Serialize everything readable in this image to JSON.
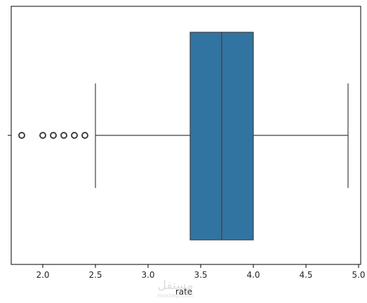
{
  "chart_data": {
    "type": "box",
    "orientation": "horizontal",
    "xlabel": "rate",
    "ylabel": "",
    "xlim": [
      1.7,
      5.02
    ],
    "x_ticks": [
      2.0,
      2.5,
      3.0,
      3.5,
      4.0,
      4.5,
      5.0
    ],
    "x_tick_labels": [
      "2.0",
      "2.5",
      "3.0",
      "3.5",
      "4.0",
      "4.5",
      "5.0"
    ],
    "grid": false,
    "box": {
      "whisker_low": 2.5,
      "q1": 3.4,
      "median": 3.7,
      "q3": 4.0,
      "whisker_high": 4.9,
      "outliers": [
        1.8,
        2.0,
        2.1,
        2.2,
        2.3,
        2.4
      ]
    },
    "colors": {
      "box_fill": "#3274a1",
      "line": "#3f3f3f",
      "axis": "#000000"
    }
  },
  "watermark": {
    "text": "مستقل",
    "subtext": "mostaql.com"
  }
}
